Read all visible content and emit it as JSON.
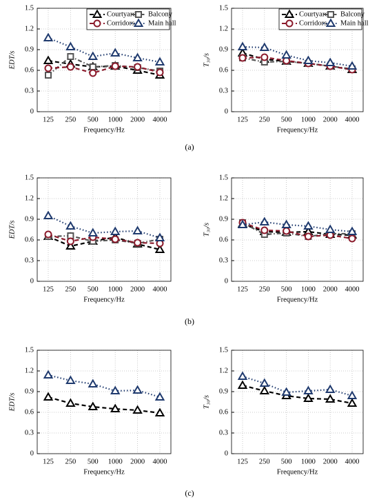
{
  "chart_data": [
    {
      "type": "line",
      "ylabel": "EDT/s",
      "xlabel": "Frequency/Hz",
      "categories": [
        "125",
        "250",
        "500",
        "1000",
        "2000",
        "4000"
      ],
      "ylim": [
        0,
        1.5
      ],
      "yticks": [
        0,
        0.3,
        0.6,
        0.9,
        1.2,
        1.5
      ],
      "grid": true,
      "legend": "upper right",
      "series": [
        {
          "name": "Courtyard",
          "color": "#000000",
          "marker": "triangle",
          "dash": "dashed",
          "values": [
            0.74,
            0.69,
            0.65,
            0.66,
            0.6,
            0.53
          ]
        },
        {
          "name": "Balcony",
          "color": "#555555",
          "marker": "square",
          "dash": "dashdot",
          "values": [
            0.53,
            0.8,
            0.65,
            0.67,
            0.64,
            0.59
          ]
        },
        {
          "name": "Corridors",
          "color": "#8b1a2b",
          "marker": "circle",
          "dash": "dashed",
          "values": [
            0.63,
            0.65,
            0.56,
            0.66,
            0.65,
            0.57
          ]
        },
        {
          "name": "Main hall",
          "color": "#1f3a6e",
          "marker": "triangle",
          "dash": "dotted",
          "values": [
            1.07,
            0.94,
            0.8,
            0.85,
            0.78,
            0.72
          ]
        }
      ]
    },
    {
      "type": "line",
      "ylabel": "T₃₀/s",
      "xlabel": "Frequency/Hz",
      "categories": [
        "125",
        "250",
        "500",
        "1000",
        "2000",
        "4000"
      ],
      "ylim": [
        0,
        1.5
      ],
      "yticks": [
        0,
        0.3,
        0.6,
        0.9,
        1.2,
        1.5
      ],
      "grid": true,
      "legend": "upper right",
      "series": [
        {
          "name": "Courtyard",
          "color": "#000000",
          "marker": "triangle",
          "dash": "dashed",
          "values": [
            0.85,
            0.76,
            0.73,
            0.7,
            0.66,
            0.61
          ]
        },
        {
          "name": "Balcony",
          "color": "#555555",
          "marker": "square",
          "dash": "dashdot",
          "values": [
            0.78,
            0.72,
            0.73,
            0.7,
            0.66,
            0.62
          ]
        },
        {
          "name": "Corridors",
          "color": "#8b1a2b",
          "marker": "circle",
          "dash": "dashed",
          "values": [
            0.78,
            0.79,
            0.74,
            0.7,
            0.66,
            0.61
          ]
        },
        {
          "name": "Main hall",
          "color": "#1f3a6e",
          "marker": "triangle",
          "dash": "dotted",
          "values": [
            0.94,
            0.93,
            0.82,
            0.74,
            0.71,
            0.66
          ]
        }
      ]
    },
    {
      "type": "line",
      "ylabel": "EDT/s",
      "xlabel": "Frequency/Hz",
      "categories": [
        "125",
        "250",
        "500",
        "1000",
        "2000",
        "4000"
      ],
      "ylim": [
        0,
        1.5
      ],
      "yticks": [
        0,
        0.3,
        0.6,
        0.9,
        1.2,
        1.5
      ],
      "grid": true,
      "legend": false,
      "series": [
        {
          "color": "#000000",
          "marker": "triangle",
          "dash": "dashed",
          "values": [
            0.65,
            0.51,
            0.58,
            0.64,
            0.54,
            0.46
          ]
        },
        {
          "color": "#555555",
          "marker": "square",
          "dash": "dashdot",
          "values": [
            0.65,
            0.66,
            0.58,
            0.6,
            0.55,
            0.61
          ]
        },
        {
          "color": "#8b1a2b",
          "marker": "circle",
          "dash": "dashed",
          "values": [
            0.68,
            0.58,
            0.64,
            0.61,
            0.56,
            0.55
          ]
        },
        {
          "color": "#1f3a6e",
          "marker": "triangle",
          "dash": "dotted",
          "values": [
            0.95,
            0.8,
            0.7,
            0.72,
            0.73,
            0.63
          ]
        }
      ]
    },
    {
      "type": "line",
      "ylabel": "T₃₀/s",
      "xlabel": "Frequency/Hz",
      "categories": [
        "125",
        "250",
        "500",
        "1000",
        "2000",
        "4000"
      ],
      "ylim": [
        0,
        1.5
      ],
      "yticks": [
        0,
        0.3,
        0.6,
        0.9,
        1.2,
        1.5
      ],
      "grid": true,
      "legend": false,
      "series": [
        {
          "color": "#000000",
          "marker": "triangle",
          "dash": "dashed",
          "values": [
            0.83,
            0.72,
            0.71,
            0.72,
            0.68,
            0.67
          ]
        },
        {
          "color": "#555555",
          "marker": "square",
          "dash": "dashdot",
          "values": [
            0.85,
            0.68,
            0.7,
            0.65,
            0.69,
            0.69
          ]
        },
        {
          "color": "#8b1a2b",
          "marker": "circle",
          "dash": "dashed",
          "values": [
            0.85,
            0.74,
            0.73,
            0.65,
            0.67,
            0.62
          ]
        },
        {
          "color": "#1f3a6e",
          "marker": "triangle",
          "dash": "dotted",
          "values": [
            0.82,
            0.86,
            0.82,
            0.8,
            0.75,
            0.72
          ]
        }
      ]
    },
    {
      "type": "line",
      "ylabel": "EDT/s",
      "xlabel": "Frequency/Hz",
      "categories": [
        "125",
        "250",
        "500",
        "1000",
        "2000",
        "4000"
      ],
      "ylim": [
        0,
        1.5
      ],
      "yticks": [
        0,
        0.3,
        0.6,
        0.9,
        1.2,
        1.5
      ],
      "grid": true,
      "legend": false,
      "series": [
        {
          "color": "#000000",
          "marker": "triangle",
          "dash": "dashed",
          "values": [
            0.82,
            0.73,
            0.68,
            0.65,
            0.63,
            0.59
          ]
        },
        {
          "color": "#1f3a6e",
          "marker": "triangle",
          "dash": "dotted",
          "values": [
            1.14,
            1.06,
            1.01,
            0.91,
            0.92,
            0.82
          ]
        }
      ]
    },
    {
      "type": "line",
      "ylabel": "T₃₀/s",
      "xlabel": "Frequency/Hz",
      "categories": [
        "125",
        "250",
        "500",
        "1000",
        "2000",
        "4000"
      ],
      "ylim": [
        0,
        1.5
      ],
      "yticks": [
        0,
        0.3,
        0.6,
        0.9,
        1.2,
        1.5
      ],
      "grid": true,
      "legend": false,
      "series": [
        {
          "color": "#000000",
          "marker": "triangle",
          "dash": "dashed",
          "values": [
            0.99,
            0.91,
            0.84,
            0.8,
            0.79,
            0.73
          ]
        },
        {
          "color": "#1f3a6e",
          "marker": "triangle",
          "dash": "dotted",
          "values": [
            1.12,
            1.02,
            0.89,
            0.91,
            0.93,
            0.84
          ]
        }
      ]
    }
  ],
  "panel_labels": [
    "(a)",
    "(b)",
    "(c)"
  ]
}
